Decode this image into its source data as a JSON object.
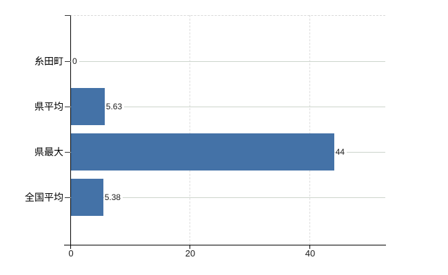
{
  "chart_data": {
    "type": "bar",
    "orientation": "horizontal",
    "title": "",
    "xlabel": "",
    "ylabel": "",
    "categories": [
      "糸田町",
      "県平均",
      "県最大",
      "全国平均"
    ],
    "values": [
      0,
      5.63,
      44,
      5.38
    ],
    "value_labels": [
      "0",
      "5.63",
      "44",
      "5.38"
    ],
    "x_ticks": [
      0,
      20,
      40
    ],
    "x_tick_labels": [
      "0",
      "20",
      "40"
    ],
    "xlim": [
      0,
      52.7
    ],
    "grid": true,
    "legend": false,
    "bar_color": "#4472a7",
    "row_gridline_color": "#ccd4cb",
    "dashed_gridline_color": "#dcdcdc",
    "axis_color": "#000000",
    "background_color": "#ffffff"
  }
}
